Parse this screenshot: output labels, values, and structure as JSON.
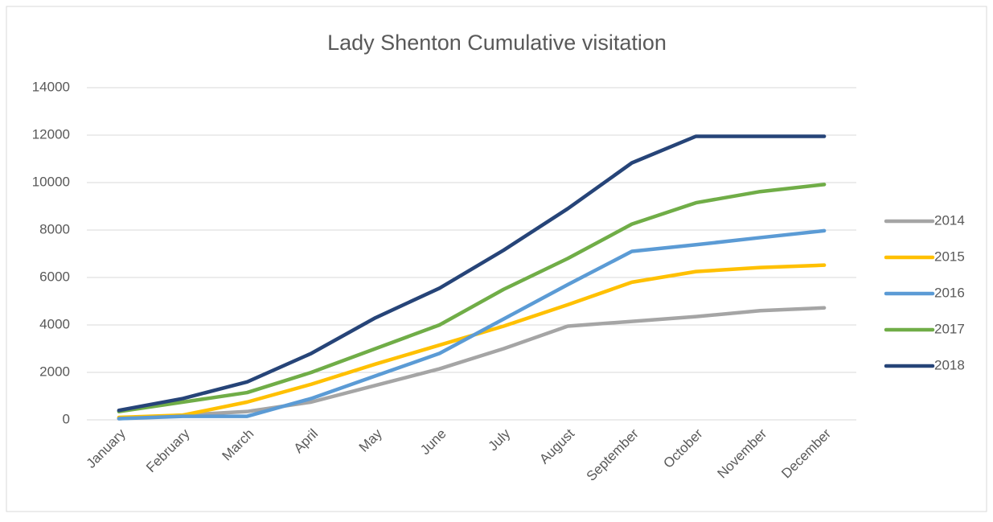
{
  "chart_data": {
    "type": "line",
    "title": "Lady Shenton Cumulative visitation",
    "categories": [
      "January",
      "February",
      "March",
      "April",
      "May",
      "June",
      "July",
      "August",
      "September",
      "October",
      "November",
      "December"
    ],
    "series": [
      {
        "name": "2014",
        "color": "#a5a5a5",
        "values": [
          50,
          200,
          350,
          750,
          1450,
          2150,
          3000,
          3950,
          4150,
          4350,
          4600,
          4720
        ]
      },
      {
        "name": "2015",
        "color": "#ffc000",
        "values": [
          100,
          200,
          750,
          1500,
          2350,
          3150,
          3950,
          4850,
          5800,
          6250,
          6420,
          6520
        ]
      },
      {
        "name": "2016",
        "color": "#5b9bd5",
        "values": [
          50,
          150,
          150,
          900,
          1850,
          2800,
          4250,
          5700,
          7100,
          7380,
          7680,
          7970
        ]
      },
      {
        "name": "2017",
        "color": "#70ad47",
        "values": [
          350,
          750,
          1150,
          2000,
          3000,
          4000,
          5500,
          6800,
          8250,
          9150,
          9620,
          9920
        ]
      },
      {
        "name": "2018",
        "color": "#264478",
        "values": [
          400,
          900,
          1600,
          2800,
          4300,
          5550,
          7150,
          8900,
          10830,
          11950,
          11950,
          11950
        ]
      }
    ],
    "ylim": [
      0,
      14000
    ],
    "yticks": [
      0,
      2000,
      4000,
      6000,
      8000,
      10000,
      12000,
      14000
    ],
    "grid": true,
    "legend": "right"
  }
}
